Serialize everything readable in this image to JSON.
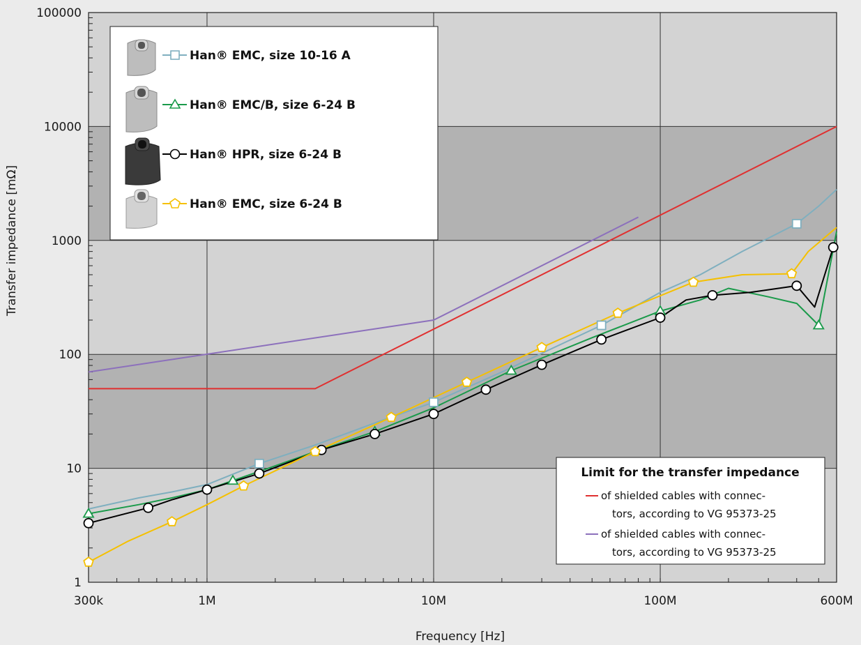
{
  "chart_data": {
    "type": "line",
    "xlabel": "Frequency [Hz]",
    "ylabel": "Transfer impedance [mΩ]",
    "xscale": "log",
    "yscale": "log",
    "xlim": [
      300000,
      600000000
    ],
    "ylim": [
      1,
      100000
    ],
    "x_ticks": [
      {
        "value": 300000,
        "label": "300k"
      },
      {
        "value": 1000000,
        "label": "1M"
      },
      {
        "value": 10000000,
        "label": "10M"
      },
      {
        "value": 100000000,
        "label": "100M"
      },
      {
        "value": 600000000,
        "label": "600M"
      }
    ],
    "y_ticks": [
      {
        "value": 1,
        "label": "1"
      },
      {
        "value": 10,
        "label": "10"
      },
      {
        "value": 100,
        "label": "100"
      },
      {
        "value": 1000,
        "label": "1000"
      },
      {
        "value": 10000,
        "label": "10000"
      },
      {
        "value": 100000,
        "label": "100000"
      }
    ],
    "grid": true,
    "series": [
      {
        "name": "Han® EMC, size 10-16 A",
        "color": "#7fafbf",
        "marker": "square",
        "x": [
          300000,
          500000,
          700000,
          1000000,
          1700000,
          3000000,
          5500000,
          10000000,
          20000000,
          55000000,
          100000000,
          150000000,
          230000000,
          400000000,
          500000000,
          600000000
        ],
        "y": [
          4.4,
          5.5,
          6.2,
          7.2,
          11,
          16,
          25,
          38,
          70,
          180,
          350,
          500,
          800,
          1400,
          2000,
          2800
        ],
        "markers_x": [
          1700000,
          10000000,
          55000000,
          400000000
        ],
        "markers_y": [
          11,
          38,
          180,
          1400
        ]
      },
      {
        "name": "Han® EMC/B, size 6-24 B",
        "color": "#1a9a4a",
        "marker": "triangle",
        "x": [
          300000,
          500000,
          700000,
          1000000,
          1300000,
          2000000,
          3000000,
          5500000,
          10000000,
          22000000,
          50000000,
          100000000,
          150000000,
          200000000,
          300000000,
          400000000,
          500000000,
          600000000
        ],
        "y": [
          4,
          4.8,
          5.5,
          6.5,
          7.8,
          10.5,
          14,
          21,
          34,
          72,
          140,
          240,
          300,
          380,
          320,
          280,
          180,
          1200
        ],
        "markers_x": [
          300000,
          1300000,
          5500000,
          22000000,
          100000000,
          500000000
        ],
        "markers_y": [
          4,
          7.8,
          21,
          72,
          240,
          180
        ]
      },
      {
        "name": "Han® HPR, size 6-24 B",
        "color": "#000000",
        "marker": "circle",
        "x": [
          300000,
          550000,
          700000,
          1000000,
          1700000,
          3200000,
          5500000,
          10000000,
          17000000,
          30000000,
          55000000,
          100000000,
          130000000,
          170000000,
          250000000,
          400000000,
          480000000,
          580000000
        ],
        "y": [
          3.3,
          4.5,
          5.3,
          6.5,
          9,
          14.5,
          20,
          30,
          49,
          81,
          135,
          210,
          300,
          330,
          350,
          400,
          260,
          870
        ],
        "markers_x": [
          300000,
          550000,
          1000000,
          1700000,
          3200000,
          5500000,
          10000000,
          17000000,
          30000000,
          55000000,
          100000000,
          170000000,
          400000000,
          580000000
        ],
        "markers_y": [
          3.3,
          4.5,
          6.5,
          9,
          14.5,
          20,
          30,
          49,
          81,
          135,
          210,
          330,
          400,
          870
        ]
      },
      {
        "name": "Han® EMC, size 6-24 B",
        "color": "#f5c000",
        "marker": "pentagon",
        "x": [
          300000,
          450000,
          700000,
          1000000,
          1450000,
          2000000,
          3000000,
          6500000,
          14000000,
          30000000,
          65000000,
          140000000,
          230000000,
          380000000,
          450000000,
          600000000
        ],
        "y": [
          1.5,
          2.3,
          3.4,
          4.8,
          7,
          9.5,
          14,
          28,
          57,
          115,
          230,
          430,
          500,
          510,
          800,
          1300
        ],
        "markers_x": [
          300000,
          700000,
          1450000,
          3000000,
          6500000,
          14000000,
          30000000,
          65000000,
          140000000,
          380000000
        ],
        "markers_y": [
          1.5,
          3.4,
          7,
          14,
          28,
          57,
          115,
          230,
          430,
          510
        ]
      },
      {
        "name": "",
        "color": "#e03030",
        "marker": "none",
        "x": [
          300000,
          3000000,
          600000000
        ],
        "y": [
          50,
          50,
          10000
        ]
      },
      {
        "name": "",
        "color": "#8c70bc",
        "marker": "none",
        "x": [
          300000,
          10000000,
          80000000
        ],
        "y": [
          70,
          200,
          1600
        ]
      }
    ]
  },
  "legend": {
    "items": [
      {
        "text": "Han® EMC, size 10-16 A"
      },
      {
        "text": "Han® EMC/B, size 6-24 B"
      },
      {
        "text": "Han® HPR, size 6-24 B"
      },
      {
        "text": "Han® EMC, size 6-24 B"
      }
    ]
  },
  "limit_box": {
    "title": "Limit for the transfer impedance",
    "red": {
      "line1": "of shielded cables with connec-",
      "line2": "tors, according to VG 95373-25",
      "color": "#e03030"
    },
    "purple": {
      "line1": "of shielded cables with connec-",
      "line2": "tors, according to VG 95373-25",
      "color": "#8c70bc"
    }
  }
}
